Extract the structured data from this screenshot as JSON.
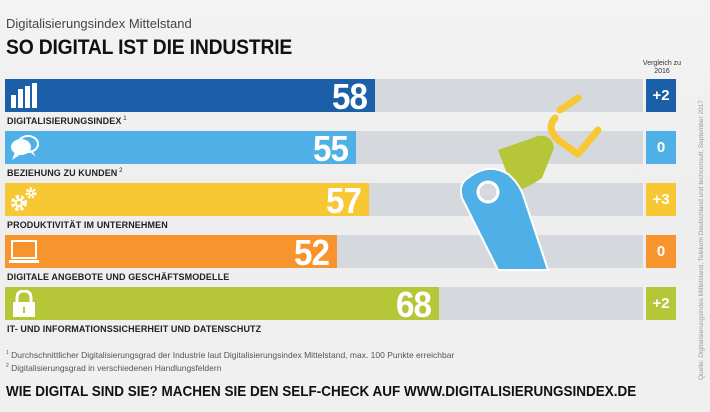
{
  "header": {
    "subtitle": "Digitalisierungsindex Mittelstand",
    "title": "SO DIGITAL IST DIE INDUSTRIE"
  },
  "compare_header": "Vergleich zu 2016",
  "colors": {
    "digitalisierungsindex": "#1a5fa8",
    "kunden": "#4fb0e8",
    "produktivitaet": "#f7c734",
    "angebote": "#f7942e",
    "sicherheit": "#b5c738",
    "track": "#d5d8dc"
  },
  "chart_data": {
    "type": "bar",
    "orientation": "horizontal",
    "title": "SO DIGITAL IST DIE INDUSTRIE",
    "subtitle": "Digitalisierungsindex Mittelstand",
    "xlim": [
      0,
      100
    ],
    "categories": [
      "DIGITALISIERUNGSINDEX",
      "BEZIEHUNG ZU KUNDEN",
      "PRODUKTIVITÄT IM UNTERNEHMEN",
      "DIGITALE ANGEBOTE UND GESCHÄFTSMODELLE",
      "IT- UND INFORMATIONSSICHERHEIT UND DATENSCHUTZ"
    ],
    "values": [
      58,
      55,
      57,
      52,
      68
    ],
    "change_vs_2016": [
      "+2",
      "0",
      "+3",
      "0",
      "+2"
    ],
    "footnote_markers": [
      "1",
      "2",
      "",
      "",
      ""
    ],
    "icons": [
      "bar-chart-icon",
      "chat-bubbles-icon",
      "gears-icon",
      "laptop-icon",
      "padlock-icon"
    ],
    "bar_colors": [
      "#1a5fa8",
      "#4fb0e8",
      "#f7c734",
      "#f7942e",
      "#b5c738"
    ]
  },
  "footnotes": [
    {
      "marker": "1",
      "text": "Durchschnittlicher Digitalisierungsgrad der Industrie laut Digitalisierungsindex Mittelstand, max. 100 Punkte erreichbar"
    },
    {
      "marker": "2",
      "text": "Digitalisierungsgrad in verschiedenen Handlungsfeldern"
    }
  ],
  "cta": "WIE DIGITAL SIND SIE? MACHEN SIE DEN SELF-CHECK AUF WWW.DIGITALISIERUNGSINDEX.DE",
  "source": "Quelle: Digitalisierungsindex Mittelstand, Telekom Deutschland und techconsult, September 2017"
}
